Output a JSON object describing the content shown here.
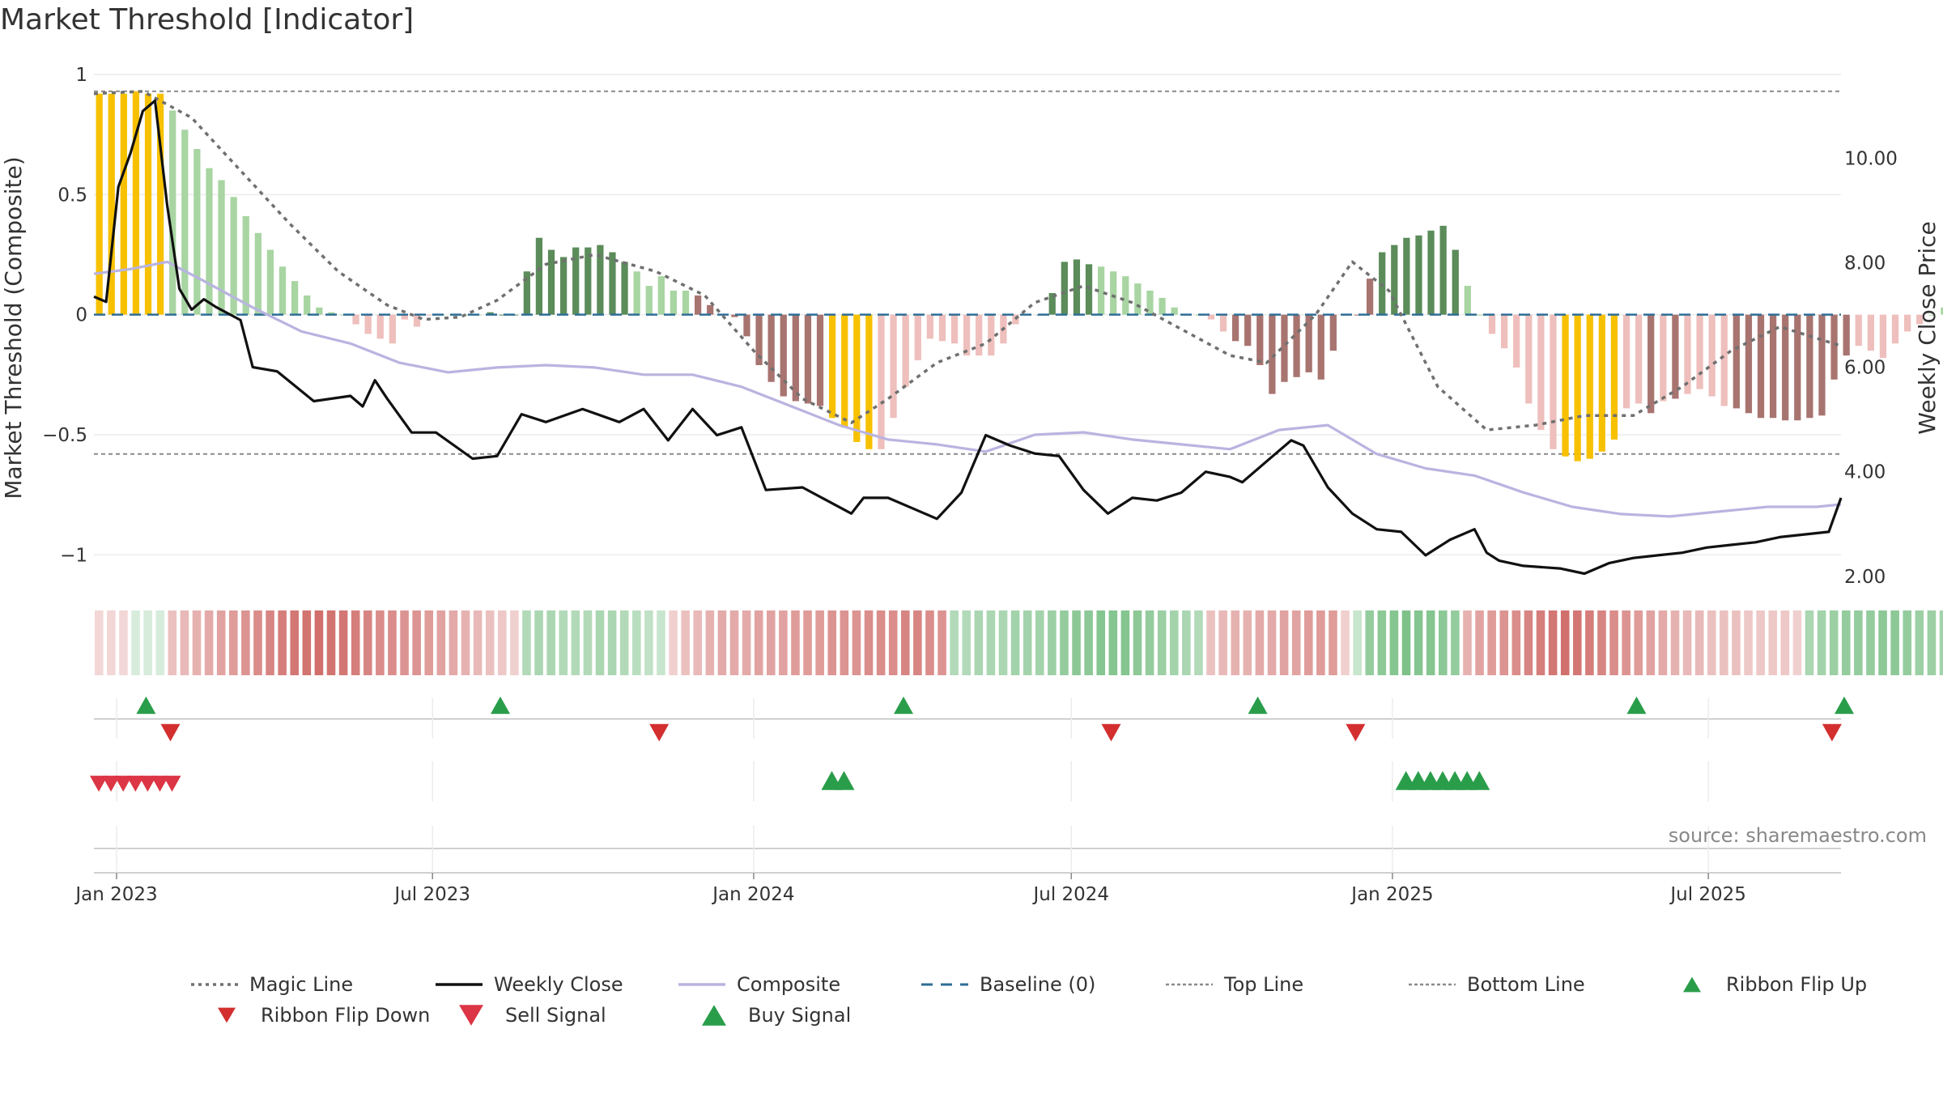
{
  "page": {
    "title": "Market Threshold [Indicator]"
  },
  "chart_data": {
    "type": "bar",
    "title": "Market Threshold [Indicator]",
    "source": "source: sharemaestro.com",
    "y_left": {
      "label": "Market Threshold (Composite)",
      "range": [
        -1.1,
        1.0
      ],
      "ticks": [
        1,
        0.5,
        0,
        -0.5,
        -1
      ],
      "tick_labels": [
        "1",
        "0.5",
        "0",
        "−0.5",
        "−1"
      ]
    },
    "y_right": {
      "label": "Weekly Close Price",
      "range": [
        1.95,
        11.6
      ],
      "ticks": [
        10,
        8,
        6,
        4,
        2
      ],
      "tick_labels": [
        "10.00",
        "8.00",
        "6.00",
        "4.00",
        "2.00"
      ]
    },
    "x_axis": {
      "start": "2022-12-19",
      "end": "2025-09-15",
      "ticks": [
        "2023-01-01",
        "2023-07-01",
        "2024-01-01",
        "2024-07-01",
        "2025-01-01",
        "2025-07-01"
      ],
      "tick_labels": [
        "Jan 2023",
        "Jul 2023",
        "Jan 2024",
        "Jul 2024",
        "Jan 2025",
        "Jul 2025"
      ]
    },
    "top_line": 0.93,
    "bottom_line": -0.58,
    "colors": {
      "strong_green": "#5b8c5a",
      "light_green": "#a8d5a2",
      "strong_red": "#a87470",
      "light_red": "#eebfbc",
      "extreme": "#f7c100",
      "weekly_close": "#111111",
      "composite": "#b9b4e0",
      "magic_line": "#707070",
      "baseline": "#2e6e96",
      "ref_line": "#8a8a8a",
      "flip_up": "#2a9d4a",
      "flip_down": "#d32f2f",
      "buy": "#2a9d4a",
      "sell": "#dc3545"
    },
    "histogram": {
      "start": "2022-12-19",
      "interval_days": 7,
      "values": [
        0.92,
        0.92,
        0.92,
        0.93,
        0.92,
        0.92,
        0.85,
        0.77,
        0.69,
        0.61,
        0.56,
        0.49,
        0.41,
        0.34,
        0.27,
        0.2,
        0.14,
        0.08,
        0.03,
        0.01,
        0.0,
        -0.04,
        -0.08,
        -0.1,
        -0.12,
        -0.02,
        -0.05,
        0.0,
        0.0,
        0.0,
        0.0,
        0.0,
        0.01,
        0.0,
        0.0,
        0.18,
        0.32,
        0.27,
        0.24,
        0.28,
        0.28,
        0.29,
        0.26,
        0.22,
        0.18,
        0.12,
        0.16,
        0.1,
        0.1,
        0.08,
        0.04,
        0.0,
        -0.01,
        -0.09,
        -0.21,
        -0.28,
        -0.34,
        -0.36,
        -0.37,
        -0.38,
        -0.43,
        -0.47,
        -0.53,
        -0.56,
        -0.56,
        -0.43,
        -0.3,
        -0.19,
        -0.1,
        -0.11,
        -0.12,
        -0.17,
        -0.17,
        -0.17,
        -0.12,
        -0.04,
        0.0,
        0.0,
        0.09,
        0.22,
        0.23,
        0.21,
        0.2,
        0.18,
        0.16,
        0.13,
        0.1,
        0.07,
        0.03,
        0.0,
        0.0,
        -0.02,
        -0.07,
        -0.11,
        -0.13,
        -0.21,
        -0.33,
        -0.28,
        -0.26,
        -0.24,
        -0.27,
        -0.15,
        0.0,
        0.0,
        0.15,
        0.26,
        0.29,
        0.32,
        0.33,
        0.35,
        0.37,
        0.27,
        0.12,
        0.0,
        -0.08,
        -0.14,
        -0.22,
        -0.37,
        -0.48,
        -0.56,
        -0.59,
        -0.61,
        -0.6,
        -0.57,
        -0.52,
        -0.39,
        -0.37,
        -0.41,
        -0.36,
        -0.35,
        -0.33,
        -0.31,
        -0.34,
        -0.38,
        -0.39,
        -0.41,
        -0.43,
        -0.43,
        -0.44,
        -0.44,
        -0.43,
        -0.42,
        -0.27,
        -0.17,
        -0.13,
        -0.15,
        -0.18,
        -0.12,
        -0.07,
        -0.04,
        0.0,
        0.03,
        0.0,
        0.0,
        -0.07,
        -0.04,
        -0.08,
        -0.1,
        -0.14,
        -0.19,
        -0.25,
        -0.07
      ],
      "class_codes": "YYYYYYLLLLLLLLLLLLLLLEEEEEEELLLLGGGGGGGGGGGGLLLLLSSSSSSSSSSSYYYYLLLLLLLLLLLLLGGGGGLLLLLLLLLLLSSSSSSSSSSSSGGGGGGGLLLLLLLLYYYYYLLSLSLLLLSSSSSSSSSSLLLLLLLLLSSSSSSSSSS",
      "class_legend": {
        "Y": "extreme",
        "G": "strong_green",
        "L": "light",
        "S": "strong_red",
        "E": "light_red"
      }
    },
    "series": [
      {
        "name": "Magic Line",
        "style": "dotted",
        "axis": "left",
        "points": [
          [
            "2022-12-19",
            0.92
          ],
          [
            "2023-01-16",
            0.93
          ],
          [
            "2023-02-13",
            0.82
          ],
          [
            "2023-03-13",
            0.6
          ],
          [
            "2023-04-10",
            0.38
          ],
          [
            "2023-05-08",
            0.18
          ],
          [
            "2023-06-05",
            0.04
          ],
          [
            "2023-06-26",
            -0.02
          ],
          [
            "2023-07-17",
            -0.01
          ],
          [
            "2023-08-07",
            0.06
          ],
          [
            "2023-09-04",
            0.21
          ],
          [
            "2023-10-02",
            0.25
          ],
          [
            "2023-11-06",
            0.18
          ],
          [
            "2023-12-04",
            0.08
          ],
          [
            "2024-01-01",
            -0.15
          ],
          [
            "2024-01-29",
            -0.35
          ],
          [
            "2024-02-26",
            -0.45
          ],
          [
            "2024-03-18",
            -0.35
          ],
          [
            "2024-04-15",
            -0.2
          ],
          [
            "2024-05-13",
            -0.12
          ],
          [
            "2024-06-10",
            0.05
          ],
          [
            "2024-07-08",
            0.12
          ],
          [
            "2024-08-05",
            0.05
          ],
          [
            "2024-09-02",
            -0.06
          ],
          [
            "2024-09-30",
            -0.17
          ],
          [
            "2024-10-21",
            -0.2
          ],
          [
            "2024-11-18",
            0.0
          ],
          [
            "2024-12-09",
            0.22
          ],
          [
            "2024-12-30",
            0.1
          ],
          [
            "2025-01-27",
            -0.3
          ],
          [
            "2025-02-24",
            -0.48
          ],
          [
            "2025-03-24",
            -0.46
          ],
          [
            "2025-04-21",
            -0.42
          ],
          [
            "2025-05-19",
            -0.42
          ],
          [
            "2025-06-16",
            -0.3
          ],
          [
            "2025-07-14",
            -0.15
          ],
          [
            "2025-08-11",
            -0.05
          ],
          [
            "2025-09-15",
            -0.13
          ]
        ]
      },
      {
        "name": "Weekly Close",
        "style": "solid",
        "axis": "right",
        "points": [
          [
            "2022-12-19",
            7.35
          ],
          [
            "2022-12-26",
            7.25
          ],
          [
            "2023-01-02",
            9.45
          ],
          [
            "2023-01-09",
            10.1
          ],
          [
            "2023-01-16",
            10.9
          ],
          [
            "2023-01-23",
            11.1
          ],
          [
            "2023-01-30",
            9.1
          ],
          [
            "2023-02-06",
            7.5
          ],
          [
            "2023-02-13",
            7.1
          ],
          [
            "2023-02-20",
            7.3
          ],
          [
            "2023-02-27",
            7.15
          ],
          [
            "2023-03-13",
            6.9
          ],
          [
            "2023-03-20",
            6.0
          ],
          [
            "2023-04-03",
            5.92
          ],
          [
            "2023-04-24",
            5.35
          ],
          [
            "2023-05-15",
            5.45
          ],
          [
            "2023-05-22",
            5.25
          ],
          [
            "2023-05-29",
            5.75
          ],
          [
            "2023-06-05",
            5.4
          ],
          [
            "2023-06-19",
            4.75
          ],
          [
            "2023-07-03",
            4.75
          ],
          [
            "2023-07-24",
            4.25
          ],
          [
            "2023-08-07",
            4.3
          ],
          [
            "2023-08-21",
            5.1
          ],
          [
            "2023-09-04",
            4.95
          ],
          [
            "2023-09-25",
            5.2
          ],
          [
            "2023-10-16",
            4.95
          ],
          [
            "2023-10-30",
            5.2
          ],
          [
            "2023-11-13",
            4.6
          ],
          [
            "2023-11-27",
            5.2
          ],
          [
            "2023-12-11",
            4.7
          ],
          [
            "2023-12-25",
            4.85
          ],
          [
            "2024-01-08",
            3.65
          ],
          [
            "2024-01-29",
            3.7
          ],
          [
            "2024-02-12",
            3.45
          ],
          [
            "2024-02-26",
            3.2
          ],
          [
            "2024-03-04",
            3.5
          ],
          [
            "2024-03-18",
            3.5
          ],
          [
            "2024-04-01",
            3.3
          ],
          [
            "2024-04-15",
            3.1
          ],
          [
            "2024-04-29",
            3.6
          ],
          [
            "2024-05-13",
            4.7
          ],
          [
            "2024-05-27",
            4.5
          ],
          [
            "2024-06-10",
            4.35
          ],
          [
            "2024-06-24",
            4.3
          ],
          [
            "2024-07-08",
            3.65
          ],
          [
            "2024-07-22",
            3.2
          ],
          [
            "2024-08-05",
            3.5
          ],
          [
            "2024-08-19",
            3.45
          ],
          [
            "2024-09-02",
            3.6
          ],
          [
            "2024-09-16",
            4.0
          ],
          [
            "2024-09-30",
            3.9
          ],
          [
            "2024-10-07",
            3.8
          ],
          [
            "2024-10-21",
            4.2
          ],
          [
            "2024-11-04",
            4.6
          ],
          [
            "2024-11-11",
            4.5
          ],
          [
            "2024-11-25",
            3.7
          ],
          [
            "2024-12-09",
            3.2
          ],
          [
            "2024-12-23",
            2.9
          ],
          [
            "2025-01-06",
            2.85
          ],
          [
            "2025-01-20",
            2.4
          ],
          [
            "2025-02-03",
            2.7
          ],
          [
            "2025-02-17",
            2.9
          ],
          [
            "2025-02-24",
            2.45
          ],
          [
            "2025-03-03",
            2.3
          ],
          [
            "2025-03-17",
            2.2
          ],
          [
            "2025-04-07",
            2.15
          ],
          [
            "2025-04-21",
            2.05
          ],
          [
            "2025-05-05",
            2.25
          ],
          [
            "2025-05-19",
            2.35
          ],
          [
            "2025-06-02",
            2.4
          ],
          [
            "2025-06-16",
            2.45
          ],
          [
            "2025-06-30",
            2.55
          ],
          [
            "2025-07-14",
            2.6
          ],
          [
            "2025-07-28",
            2.65
          ],
          [
            "2025-08-11",
            2.75
          ],
          [
            "2025-08-25",
            2.8
          ],
          [
            "2025-09-08",
            2.85
          ],
          [
            "2025-09-15",
            3.5
          ]
        ]
      },
      {
        "name": "Composite",
        "style": "solid",
        "axis": "left",
        "points": [
          [
            "2022-12-19",
            0.17
          ],
          [
            "2023-01-09",
            0.19
          ],
          [
            "2023-01-30",
            0.22
          ],
          [
            "2023-02-20",
            0.14
          ],
          [
            "2023-03-20",
            0.03
          ],
          [
            "2023-04-17",
            -0.07
          ],
          [
            "2023-05-15",
            -0.12
          ],
          [
            "2023-06-12",
            -0.2
          ],
          [
            "2023-07-10",
            -0.24
          ],
          [
            "2023-08-07",
            -0.22
          ],
          [
            "2023-09-04",
            -0.21
          ],
          [
            "2023-10-02",
            -0.22
          ],
          [
            "2023-10-30",
            -0.25
          ],
          [
            "2023-11-27",
            -0.25
          ],
          [
            "2023-12-25",
            -0.3
          ],
          [
            "2024-01-22",
            -0.38
          ],
          [
            "2024-02-19",
            -0.46
          ],
          [
            "2024-03-18",
            -0.52
          ],
          [
            "2024-04-15",
            -0.54
          ],
          [
            "2024-05-13",
            -0.57
          ],
          [
            "2024-06-10",
            -0.5
          ],
          [
            "2024-07-08",
            -0.49
          ],
          [
            "2024-08-05",
            -0.52
          ],
          [
            "2024-09-02",
            -0.54
          ],
          [
            "2024-09-30",
            -0.56
          ],
          [
            "2024-10-28",
            -0.48
          ],
          [
            "2024-11-25",
            -0.46
          ],
          [
            "2024-12-23",
            -0.58
          ],
          [
            "2025-01-20",
            -0.64
          ],
          [
            "2025-02-17",
            -0.67
          ],
          [
            "2025-03-17",
            -0.74
          ],
          [
            "2025-04-14",
            -0.8
          ],
          [
            "2025-05-12",
            -0.83
          ],
          [
            "2025-06-09",
            -0.84
          ],
          [
            "2025-07-07",
            -0.82
          ],
          [
            "2025-08-04",
            -0.8
          ],
          [
            "2025-09-01",
            -0.8
          ],
          [
            "2025-09-15",
            -0.79
          ]
        ]
      }
    ],
    "ribbon": {
      "start": "2022-12-19",
      "interval_days": 7,
      "values": [
        -0.05,
        -0.05,
        -0.05,
        0.05,
        0.05,
        0.05,
        -0.2,
        -0.25,
        -0.3,
        -0.35,
        -0.4,
        -0.45,
        -0.5,
        -0.55,
        -0.6,
        -0.65,
        -0.7,
        -0.72,
        -0.75,
        -0.72,
        -0.7,
        -0.65,
        -0.6,
        -0.55,
        -0.55,
        -0.5,
        -0.5,
        -0.45,
        -0.4,
        -0.35,
        -0.3,
        -0.25,
        -0.2,
        -0.15,
        -0.1,
        0.3,
        0.35,
        0.35,
        0.3,
        0.3,
        0.3,
        0.35,
        0.35,
        0.3,
        0.25,
        0.2,
        0.15,
        -0.1,
        -0.2,
        -0.25,
        -0.3,
        -0.35,
        -0.35,
        -0.35,
        -0.4,
        -0.4,
        -0.4,
        -0.45,
        -0.45,
        -0.45,
        -0.5,
        -0.5,
        -0.5,
        -0.55,
        -0.55,
        -0.55,
        -0.6,
        -0.6,
        -0.55,
        -0.5,
        0.3,
        0.3,
        0.35,
        0.35,
        0.35,
        0.4,
        0.4,
        0.4,
        0.45,
        0.5,
        0.55,
        0.55,
        0.6,
        0.6,
        0.6,
        0.55,
        0.5,
        0.45,
        0.4,
        0.35,
        0.3,
        -0.2,
        -0.25,
        -0.3,
        -0.3,
        -0.35,
        -0.35,
        -0.4,
        -0.4,
        -0.45,
        -0.45,
        -0.45,
        -0.1,
        0.15,
        0.5,
        0.55,
        0.6,
        0.65,
        0.6,
        0.6,
        0.55,
        0.5,
        -0.3,
        -0.4,
        -0.45,
        -0.5,
        -0.55,
        -0.6,
        -0.65,
        -0.7,
        -0.75,
        -0.7,
        -0.65,
        -0.6,
        -0.55,
        -0.5,
        -0.45,
        -0.4,
        -0.35,
        -0.3,
        -0.25,
        -0.25,
        -0.2,
        -0.2,
        -0.2,
        -0.15,
        -0.15,
        -0.15,
        -0.15,
        -0.1,
        0.35,
        0.4,
        0.45,
        0.5,
        0.5,
        0.5,
        0.55,
        0.55,
        0.5,
        0.45,
        0.45,
        0.4,
        0.4,
        0.4,
        0.35,
        0.35,
        0.3,
        0.25,
        0.15
      ]
    },
    "ribbon_flip_up": [
      "2023-01-16",
      "2023-08-07",
      "2024-03-25",
      "2024-10-14",
      "2025-05-19",
      "2025-09-15"
    ],
    "ribbon_flip_down": [
      "2023-01-30",
      "2023-11-06",
      "2024-07-22",
      "2024-12-09",
      "2025-09-08"
    ],
    "sell_signals": [
      "2022-12-19",
      "2022-12-26",
      "2023-01-02",
      "2023-01-09",
      "2023-01-16",
      "2023-01-23",
      "2023-01-30"
    ],
    "buy_signals": [
      "2024-02-12",
      "2024-02-19",
      "2025-01-06",
      "2025-01-13",
      "2025-01-20",
      "2025-01-27",
      "2025-02-03",
      "2025-02-10",
      "2025-02-17"
    ],
    "legend": {
      "placement": "bottom",
      "entries": [
        {
          "label": "Magic Line",
          "marker": "dotted"
        },
        {
          "label": "Weekly Close",
          "marker": "line"
        },
        {
          "label": "Composite",
          "marker": "line"
        },
        {
          "label": "Baseline (0)",
          "marker": "dashed"
        },
        {
          "label": "Top Line",
          "marker": "dotted-thin"
        },
        {
          "label": "Bottom Line",
          "marker": "dotted-thin"
        },
        {
          "label": "Ribbon Flip Up",
          "marker": "triangle-up"
        },
        {
          "label": "Ribbon Flip Down",
          "marker": "triangle-down"
        },
        {
          "label": "Sell Signal",
          "marker": "triangle-down-large"
        },
        {
          "label": "Buy Signal",
          "marker": "triangle-up-large"
        }
      ]
    }
  }
}
